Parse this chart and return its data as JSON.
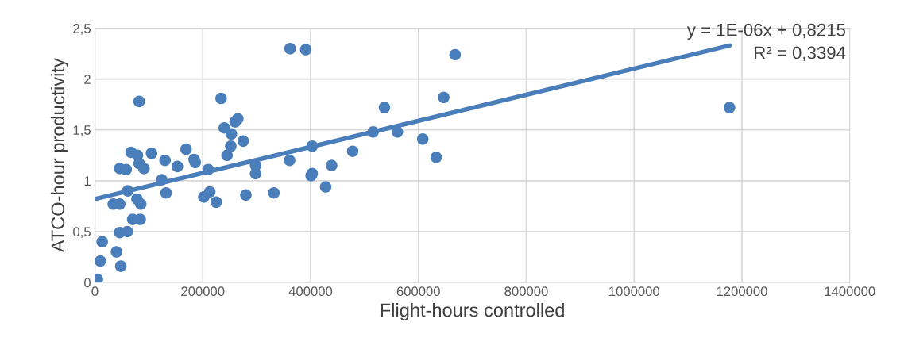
{
  "chart_data": {
    "type": "scatter",
    "xlabel": "Flight-hours controlled",
    "ylabel": "ATCO-hour productivity",
    "xlim": [
      0,
      1400000
    ],
    "xticks": [
      0,
      200000,
      400000,
      600000,
      800000,
      1000000,
      1200000,
      1400000
    ],
    "ylim": [
      0,
      2.5
    ],
    "yticks": [
      0,
      {
        "value": 0.5,
        "label": "0,5"
      },
      1,
      {
        "value": 1.5,
        "label": "1,5"
      },
      2,
      {
        "value": 2.5,
        "label": "2,5"
      }
    ],
    "grid": true,
    "legend": false,
    "annotations": [
      "y = 1E-06x + 0,8215",
      "R² = 0,3394"
    ],
    "series": [
      {
        "marker": "circle",
        "color": "#4a7ebb",
        "x": [
          4500,
          10000,
          13500,
          40000,
          48000,
          46000,
          60000,
          34000,
          46000,
          70000,
          84000,
          78000,
          85000,
          61000,
          46000,
          58000,
          67000,
          79000,
          82000,
          91000,
          105000,
          82000,
          124000,
          130000,
          132000,
          153000,
          169000,
          184000,
          186000,
          202000,
          210000,
          213000,
          225000,
          234000,
          240000,
          245000,
          252000,
          253000,
          260000,
          265000,
          275000,
          280000,
          298000,
          298000,
          332000,
          361000,
          362000,
          391000,
          403000,
          403000,
          401000,
          428000,
          439000,
          478000,
          516000,
          537000,
          561000,
          608000,
          633000,
          647000,
          668000,
          1177000
        ],
        "values": [
          0.03,
          0.21,
          0.4,
          0.3,
          0.16,
          0.49,
          0.5,
          0.77,
          0.77,
          0.62,
          0.62,
          0.82,
          0.77,
          0.9,
          1.12,
          1.11,
          1.28,
          1.25,
          1.17,
          1.12,
          1.27,
          1.78,
          1.01,
          1.2,
          0.88,
          1.14,
          1.31,
          1.21,
          1.18,
          0.84,
          1.11,
          0.89,
          0.79,
          1.81,
          1.52,
          1.25,
          1.34,
          1.46,
          1.58,
          1.61,
          1.39,
          0.86,
          1.15,
          1.07,
          0.88,
          1.2,
          2.3,
          2.29,
          1.34,
          1.07,
          1.05,
          0.94,
          1.15,
          1.29,
          1.48,
          1.72,
          1.48,
          1.41,
          1.23,
          1.82,
          2.24,
          1.72
        ]
      },
      {
        "type": "line",
        "color": "#4a7ebb",
        "x": [
          0,
          1177000
        ],
        "values": [
          0.82,
          2.33
        ]
      }
    ]
  }
}
